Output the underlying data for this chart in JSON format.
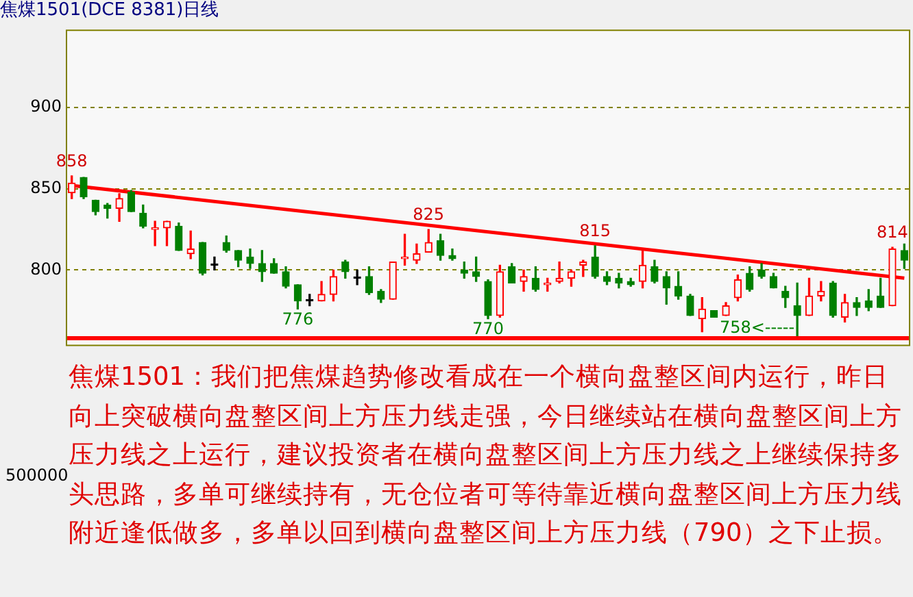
{
  "chart_data": {
    "type": "candlestick",
    "title": "焦煤1501(DCE 8381)日线",
    "categories": [
      null,
      null,
      null,
      null,
      null,
      null,
      null,
      null,
      null,
      null,
      null,
      null,
      null,
      null,
      null,
      null,
      null,
      null,
      null,
      null,
      null,
      null,
      null,
      null,
      null,
      null,
      null,
      null,
      null,
      null,
      null,
      null,
      null,
      null,
      null,
      null,
      null,
      null,
      null,
      null,
      null,
      null,
      null,
      null,
      null,
      null,
      null,
      null,
      null,
      null,
      null,
      null,
      null,
      null,
      null,
      null,
      null,
      null,
      null,
      null,
      null,
      null,
      null,
      null,
      null,
      null,
      null,
      null,
      null,
      null,
      null
    ],
    "ohlc": [
      [
        847.5,
        858,
        844,
        853.5
      ],
      [
        857,
        857,
        844,
        845
      ],
      [
        843,
        843,
        834,
        836
      ],
      [
        840,
        841,
        832,
        838
      ],
      [
        838,
        847,
        830,
        844
      ],
      [
        848,
        849,
        836,
        836
      ],
      [
        835,
        840,
        826,
        827
      ],
      [
        825,
        830,
        815,
        826
      ],
      [
        826,
        830,
        815,
        830
      ],
      [
        827,
        829,
        812,
        812
      ],
      [
        810,
        824,
        807,
        813
      ],
      [
        817,
        817,
        797,
        798
      ],
      [
        803,
        808,
        800,
        803
      ],
      [
        817,
        821,
        811,
        812
      ],
      [
        812,
        812,
        802,
        806
      ],
      [
        808,
        813,
        801,
        804
      ],
      [
        804,
        812,
        793,
        799
      ],
      [
        804,
        807,
        798,
        798
      ],
      [
        799,
        802,
        789,
        790
      ],
      [
        791,
        791,
        776,
        781
      ],
      [
        781,
        785,
        778,
        781
      ],
      [
        781,
        793,
        781,
        785
      ],
      [
        785,
        800,
        781,
        796
      ],
      [
        805,
        806,
        795,
        799
      ],
      [
        795,
        800,
        791,
        795
      ],
      [
        796,
        802,
        785,
        786
      ],
      [
        787,
        788,
        780,
        782
      ],
      [
        782,
        805,
        782,
        805
      ],
      [
        807,
        822,
        803,
        808
      ],
      [
        806,
        816,
        804,
        810
      ],
      [
        811,
        825,
        811,
        817
      ],
      [
        818,
        822,
        806,
        809
      ],
      [
        809,
        813,
        806,
        807
      ],
      [
        800,
        805,
        795,
        798
      ],
      [
        799,
        808,
        793,
        796
      ],
      [
        793,
        794,
        770,
        772
      ],
      [
        772,
        803,
        771,
        799
      ],
      [
        802,
        804,
        792,
        792
      ],
      [
        793,
        800,
        787,
        796
      ],
      [
        795,
        802,
        787,
        788
      ],
      [
        791,
        795,
        787,
        792
      ],
      [
        793,
        805,
        792,
        795
      ],
      [
        795,
        800,
        790,
        799
      ],
      [
        803,
        806,
        796,
        805
      ],
      [
        808,
        815,
        795,
        796
      ],
      [
        796,
        799,
        791,
        793
      ],
      [
        795,
        798,
        789,
        792
      ],
      [
        793,
        795,
        790,
        791
      ],
      [
        793,
        813,
        789,
        803
      ],
      [
        802,
        806,
        792,
        793
      ],
      [
        796,
        799,
        779,
        789
      ],
      [
        790,
        799,
        782,
        784
      ],
      [
        784,
        785,
        772,
        772
      ],
      [
        770,
        783,
        762,
        776
      ],
      [
        775,
        775,
        771,
        771
      ],
      [
        772,
        780,
        772,
        778
      ],
      [
        783,
        797,
        781,
        794
      ],
      [
        798,
        802,
        787,
        788
      ],
      [
        800,
        804,
        795,
        796
      ],
      [
        796,
        798,
        789,
        789
      ],
      [
        787,
        790,
        777,
        783
      ],
      [
        778,
        792,
        758,
        772
      ],
      [
        772,
        795,
        772,
        784
      ],
      [
        784,
        793,
        781,
        787
      ],
      [
        792,
        793,
        771,
        772
      ],
      [
        771,
        785,
        768,
        780
      ],
      [
        780,
        783,
        772,
        777
      ],
      [
        781,
        788,
        775,
        777
      ],
      [
        784,
        795,
        777,
        777
      ],
      [
        778,
        814,
        778,
        813
      ],
      [
        812,
        816,
        801,
        806
      ]
    ],
    "series": [
      {
        "type": "line",
        "color": "#ff0000",
        "values": [
          852,
          null,
          null,
          null,
          null,
          null,
          null,
          null,
          null,
          null,
          null,
          null,
          null,
          null,
          null,
          null,
          null,
          null,
          null,
          null,
          null,
          null,
          null,
          null,
          null,
          null,
          null,
          null,
          null,
          null,
          null,
          null,
          null,
          null,
          null,
          null,
          null,
          null,
          null,
          null,
          null,
          null,
          null,
          null,
          null,
          null,
          null,
          null,
          null,
          null,
          null,
          null,
          null,
          null,
          null,
          null,
          null,
          null,
          null,
          null,
          null,
          null,
          null,
          null,
          null,
          null,
          null,
          null,
          null,
          null,
          795
        ]
      }
    ],
    "ylim": [
      754,
      948
    ],
    "yticks": [
      800,
      850,
      900
    ],
    "grid": "y",
    "ref_lines": [
      {
        "axis": "y",
        "value": 758,
        "color": "#ff0000"
      }
    ],
    "annotations": [
      {
        "text": "858",
        "y": 858
      },
      {
        "text": "825",
        "y": 825
      },
      {
        "text": "815",
        "y": 815
      },
      {
        "text": "814",
        "y": 814
      },
      {
        "text": "776",
        "y": 776
      },
      {
        "text": "770",
        "y": 770
      },
      {
        "text": "758<-----",
        "y": 758
      },
      "焦煤1501：我们把焦煤趋势修改看成在一个横向盘整区间内运行，昨日向上突破横向盘整区间上方压力线走强，今日继续站在横向盘整区间上方压力线之上运行，建议投资者在横向盘整区间上方压力线之上继续保持多头思路，多单可继续持有，无仓位者可等待靠近横向盘整区间上方压力线附近逢低做多，多单以回到横向盘整区间上方压力线（790）之下止损。",
      "500000"
    ]
  }
}
